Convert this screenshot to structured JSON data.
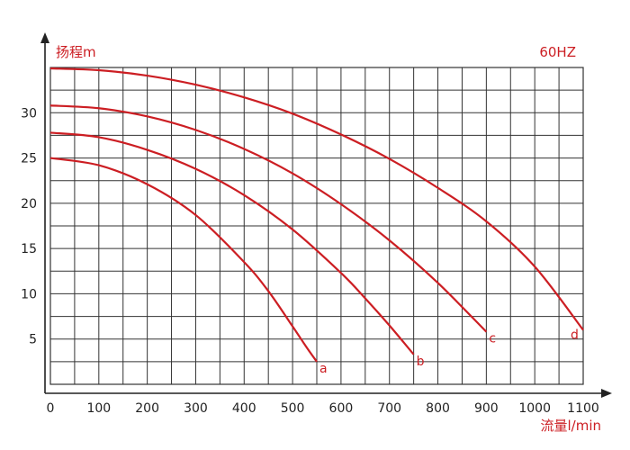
{
  "chart_data": {
    "type": "line",
    "ylabel": "扬程m",
    "xlabel": "流量l/min",
    "annotation": "60HZ",
    "xlim": [
      0,
      1100
    ],
    "ylim": [
      0,
      35
    ],
    "x_ticks": [
      0,
      100,
      200,
      300,
      400,
      500,
      600,
      700,
      800,
      900,
      1000,
      1100
    ],
    "y_ticks": [
      5,
      10,
      15,
      20,
      25,
      30
    ],
    "grid": true,
    "curve_color": "#cc1e23",
    "series": [
      {
        "name": "a",
        "x": [
          0,
          100,
          200,
          300,
          400,
          450,
          500,
          530,
          550
        ],
        "y": [
          25,
          24.2,
          22.1,
          18.7,
          13.5,
          10.3,
          6.4,
          4.0,
          2.5
        ]
      },
      {
        "name": "b",
        "x": [
          0,
          100,
          200,
          300,
          400,
          500,
          600,
          650,
          700,
          750
        ],
        "y": [
          27.8,
          27.3,
          25.9,
          23.8,
          20.9,
          17.1,
          12.3,
          9.5,
          6.5,
          3.3
        ]
      },
      {
        "name": "c",
        "x": [
          0,
          100,
          200,
          300,
          400,
          500,
          600,
          700,
          800,
          900
        ],
        "y": [
          30.8,
          30.5,
          29.6,
          28.1,
          26.0,
          23.3,
          19.9,
          15.9,
          11.2,
          5.8
        ]
      },
      {
        "name": "d",
        "x": [
          0,
          100,
          200,
          300,
          400,
          500,
          600,
          700,
          800,
          900,
          1000,
          1100
        ],
        "y": [
          34.9,
          34.7,
          34.1,
          33.1,
          31.7,
          29.9,
          27.6,
          24.9,
          21.7,
          18.0,
          13.0,
          6.0
        ]
      }
    ]
  }
}
